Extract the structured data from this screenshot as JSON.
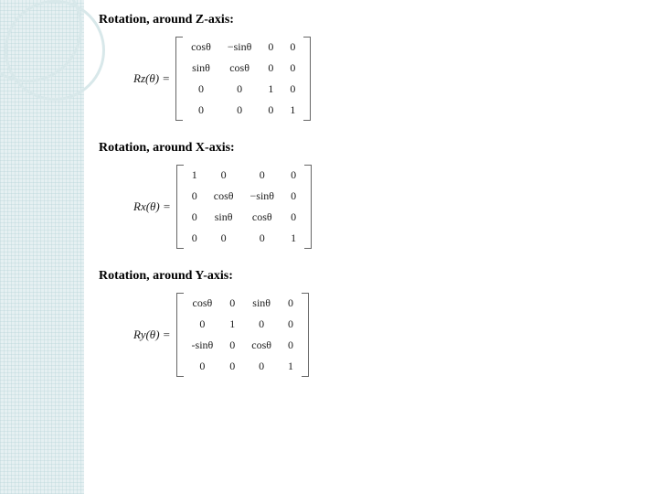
{
  "background": {
    "sidebar_color": "#e6f0f2",
    "circle_border_color": "#d8e8ea",
    "page_color": "#ffffff"
  },
  "sections": [
    {
      "heading": "Rotation, around Z-axis:",
      "lhs": "Rz(θ) =",
      "matrix": [
        [
          "cosθ",
          "−sinθ",
          "0",
          "0"
        ],
        [
          "sinθ",
          "cosθ",
          "0",
          "0"
        ],
        [
          "0",
          "0",
          "1",
          "0"
        ],
        [
          "0",
          "0",
          "0",
          "1"
        ]
      ]
    },
    {
      "heading": "Rotation, around X-axis:",
      "lhs": "Rx(θ) =",
      "matrix": [
        [
          "1",
          "0",
          "0",
          "0"
        ],
        [
          "0",
          "cosθ",
          "−sinθ",
          "0"
        ],
        [
          "0",
          "sinθ",
          "cosθ",
          "0"
        ],
        [
          "0",
          "0",
          "0",
          "1"
        ]
      ]
    },
    {
      "heading": "Rotation, around Y-axis:",
      "lhs": "Ry(θ) =",
      "matrix": [
        [
          "cosθ",
          "0",
          "sinθ",
          "0"
        ],
        [
          "0",
          "1",
          "0",
          "0"
        ],
        [
          "-sinθ",
          "0",
          "cosθ",
          "0"
        ],
        [
          "0",
          "0",
          "0",
          "1"
        ]
      ]
    }
  ]
}
